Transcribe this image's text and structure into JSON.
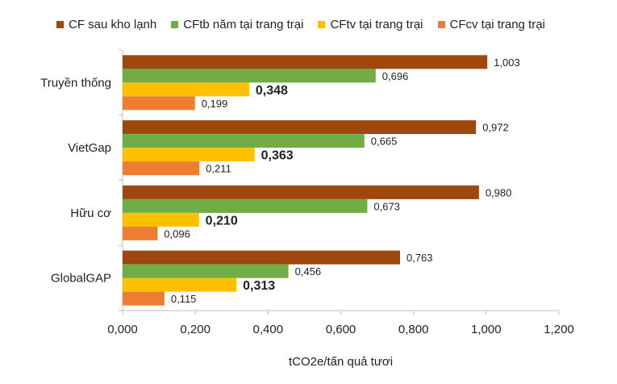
{
  "chart_data": {
    "type": "bar",
    "orientation": "horizontal",
    "categories": [
      "Truyền thống",
      "VietGap",
      "Hữu cơ",
      "GlobalGAP"
    ],
    "series": [
      {
        "name": "CF sau kho lạnh",
        "color": "#9E480E",
        "values": [
          1.003,
          0.972,
          0.98,
          0.763
        ],
        "labels": [
          "1,003",
          "0,972",
          "0,980",
          "0,763"
        ]
      },
      {
        "name": "CFtb năm tại trang trại",
        "color": "#70AD47",
        "values": [
          0.696,
          0.665,
          0.673,
          0.456
        ],
        "labels": [
          "0,696",
          "0,665",
          "0,673",
          "0,456"
        ]
      },
      {
        "name": "CFtv tại trang trại",
        "color": "#FFC000",
        "values": [
          0.348,
          0.363,
          0.21,
          0.313
        ],
        "labels": [
          "0,348",
          "0,363",
          "0,210",
          "0,313"
        ]
      },
      {
        "name": "CFcv tại trang trại",
        "color": "#ED7D31",
        "values": [
          0.199,
          0.211,
          0.096,
          0.115
        ],
        "labels": [
          "0,199",
          "0,211",
          "0,096",
          "0,115"
        ]
      }
    ],
    "xlabel": "tCO2e/tấn quả tươi",
    "xlim": [
      0,
      1.2
    ],
    "xticks": [
      0,
      0.2,
      0.4,
      0.6,
      0.8,
      1.0,
      1.2
    ],
    "xtick_labels": [
      "0,000",
      "0,200",
      "0,400",
      "0,600",
      "0,800",
      "1,000",
      "1,200"
    ],
    "legend_position": "top",
    "grid": false
  }
}
